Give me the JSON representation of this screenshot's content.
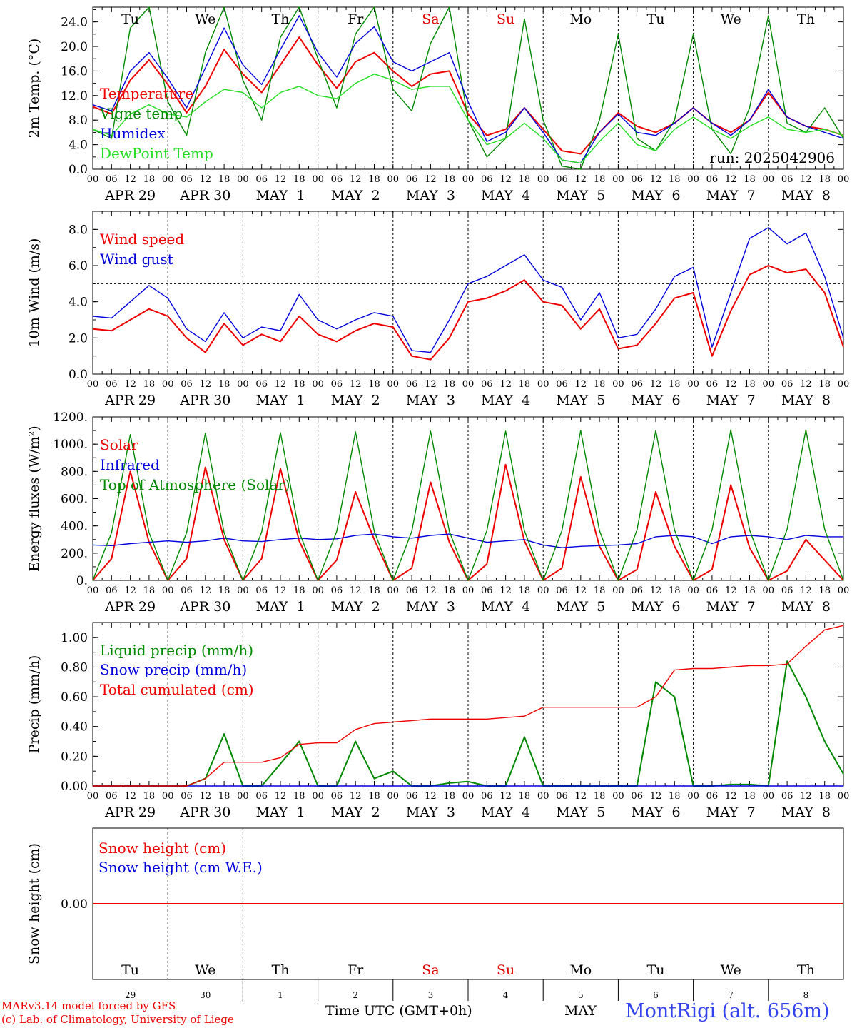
{
  "days": [
    "Tu",
    "We",
    "Th",
    "Fr",
    "Sa",
    "Su",
    "Mo",
    "Tu",
    "We",
    "Th"
  ],
  "day_colors": [
    "#000000",
    "#000000",
    "#000000",
    "#000000",
    "#e00000",
    "#e00000",
    "#000000",
    "#000000",
    "#000000",
    "#000000"
  ],
  "dates": [
    "APR 29",
    "APR 30",
    "MAY  1",
    "MAY  2",
    "MAY  3",
    "MAY  4",
    "MAY  5",
    "MAY  6",
    "MAY  7",
    "MAY  8"
  ],
  "hour_ticks": [
    "00",
    "06",
    "12",
    "18"
  ],
  "hour_tick_end": "00",
  "day_numbers": [
    "29",
    "30",
    "1",
    "2",
    "3",
    "4",
    "5",
    "6",
    "7",
    "8"
  ],
  "footer": {
    "model": "MARv3.14 model forced by GFS",
    "lab": "(c) Lab. of Climatology, University of Liege",
    "axis_title": "Time UTC (GMT+0h)",
    "month": "MAY",
    "station": "MontRigi (alt. 656m)"
  },
  "colors": {
    "red": "#ee0000",
    "blue": "#0000dd",
    "green": "#008800",
    "lightgreen": "#22dd22"
  },
  "chart_data": [
    {
      "type": "line",
      "ylabel": "2m Temp. (°C)",
      "ylim": [
        0,
        26.4
      ],
      "yticks": [
        "0.0",
        "4.0",
        "8.0",
        "12.0",
        "16.0",
        "20.0",
        "24.0"
      ],
      "ytick_values": [
        0,
        4,
        8,
        12,
        16,
        20,
        24
      ],
      "run_label": "run: 2025042906",
      "x_hours_step": 6,
      "series": [
        {
          "name": "Temperature",
          "color": "#ee0000",
          "values": [
            10.2,
            9.0,
            14.5,
            17.8,
            13.8,
            9.2,
            13.5,
            19.5,
            15.5,
            12.5,
            17.0,
            21.5,
            17.0,
            13.2,
            17.5,
            19.0,
            16.0,
            13.5,
            15.5,
            16.0,
            9.0,
            5.5,
            6.5,
            10.0,
            6.5,
            3.0,
            2.5,
            6.0,
            9.2,
            7.0,
            6.0,
            7.5,
            10.0,
            7.5,
            6.0,
            8.0,
            12.5,
            8.5,
            7.0,
            6.5,
            5.5
          ]
        },
        {
          "name": "Vigne temp",
          "color": "#008800",
          "values": [
            6.5,
            5.0,
            23.0,
            28.0,
            11.0,
            5.5,
            19.0,
            28.0,
            14.5,
            8.0,
            21.5,
            28.0,
            18.0,
            10.0,
            22.0,
            28.0,
            13.0,
            9.5,
            20.5,
            28.0,
            8.0,
            2.0,
            5.0,
            24.5,
            8.0,
            0.5,
            0.0,
            8.0,
            22.0,
            5.0,
            3.0,
            8.0,
            22.0,
            6.5,
            2.5,
            10.0,
            25.0,
            7.5,
            6.0,
            10.0,
            5.0
          ]
        },
        {
          "name": "Humidex",
          "color": "#0000dd",
          "values": [
            10.5,
            9.5,
            16.0,
            19.0,
            14.8,
            10.0,
            16.5,
            23.0,
            17.0,
            13.8,
            19.5,
            25.0,
            19.0,
            15.0,
            20.5,
            23.2,
            17.5,
            16.0,
            17.5,
            19.0,
            11.0,
            4.5,
            6.0,
            10.0,
            6.0,
            1.5,
            1.0,
            6.0,
            9.0,
            6.0,
            5.5,
            7.5,
            10.0,
            7.5,
            5.5,
            8.0,
            13.0,
            8.5,
            7.0,
            6.0,
            5.0
          ]
        },
        {
          "name": "DewPoint Temp",
          "color": "#22dd22",
          "values": [
            6.5,
            5.5,
            9.0,
            10.5,
            9.0,
            8.5,
            11.0,
            13.0,
            12.5,
            10.0,
            12.5,
            13.5,
            12.0,
            11.5,
            14.0,
            15.5,
            14.5,
            13.0,
            13.5,
            13.5,
            8.0,
            4.0,
            5.0,
            7.5,
            5.0,
            1.5,
            1.0,
            4.5,
            7.5,
            4.0,
            3.0,
            6.5,
            8.5,
            6.5,
            5.0,
            7.0,
            8.5,
            6.5,
            6.0,
            6.5,
            5.5
          ]
        }
      ]
    },
    {
      "type": "line",
      "ylabel": "10m Wind (m/s)",
      "ylim": [
        0,
        9
      ],
      "yticks": [
        "0.0",
        "2.0",
        "4.0",
        "6.0",
        "8.0"
      ],
      "ytick_values": [
        0,
        2,
        4,
        6,
        8
      ],
      "reference_line": 5,
      "x_hours_step": 6,
      "series": [
        {
          "name": "Wind speed",
          "color": "#ee0000",
          "values": [
            2.5,
            2.4,
            3.0,
            3.6,
            3.2,
            2.0,
            1.2,
            2.8,
            1.6,
            2.2,
            1.8,
            3.2,
            2.2,
            1.8,
            2.4,
            2.8,
            2.6,
            1.0,
            0.8,
            2.0,
            4.0,
            4.2,
            4.6,
            5.2,
            4.0,
            3.8,
            2.5,
            3.6,
            1.4,
            1.6,
            2.8,
            4.2,
            4.5,
            1.0,
            3.5,
            5.5,
            6.0,
            5.6,
            5.8,
            4.5,
            1.5
          ]
        },
        {
          "name": "Wind gust",
          "color": "#0000dd",
          "values": [
            3.2,
            3.1,
            4.0,
            4.9,
            4.2,
            2.5,
            1.8,
            3.4,
            2.0,
            2.6,
            2.4,
            4.4,
            3.0,
            2.5,
            3.0,
            3.4,
            3.2,
            1.3,
            1.2,
            3.0,
            5.0,
            5.4,
            6.0,
            6.6,
            5.2,
            4.8,
            3.0,
            4.5,
            2.0,
            2.2,
            3.6,
            5.4,
            5.9,
            1.5,
            4.5,
            7.5,
            8.1,
            7.2,
            7.8,
            5.4,
            2.0
          ]
        }
      ]
    },
    {
      "type": "line",
      "ylabel": "Energy fluxes (W/m²)",
      "ylim": [
        0,
        1200
      ],
      "yticks": [
        "0.",
        "200.",
        "400.",
        "600.",
        "800.",
        "1000.",
        "1200."
      ],
      "ytick_values": [
        0,
        200,
        400,
        600,
        800,
        1000,
        1200
      ],
      "x_hours_step": 6,
      "series": [
        {
          "name": "Solar",
          "color": "#ee0000",
          "values": [
            0,
            160,
            800,
            280,
            0,
            160,
            830,
            300,
            0,
            160,
            820,
            290,
            0,
            150,
            650,
            300,
            0,
            90,
            720,
            280,
            0,
            120,
            850,
            290,
            0,
            90,
            760,
            250,
            0,
            80,
            650,
            250,
            0,
            80,
            700,
            240,
            0,
            70,
            300,
            150,
            0
          ]
        },
        {
          "name": "Infrared",
          "color": "#0000dd",
          "values": [
            260,
            255,
            270,
            280,
            290,
            280,
            290,
            310,
            290,
            285,
            300,
            310,
            300,
            305,
            330,
            340,
            320,
            310,
            330,
            340,
            310,
            280,
            290,
            300,
            260,
            240,
            250,
            255,
            260,
            270,
            320,
            330,
            320,
            270,
            320,
            330,
            320,
            300,
            330,
            320,
            320
          ]
        },
        {
          "name": "Top of Atmosphere (Solar)",
          "color": "#008800",
          "values": [
            0,
            350,
            1070,
            350,
            0,
            350,
            1080,
            350,
            0,
            355,
            1085,
            355,
            0,
            360,
            1090,
            360,
            0,
            360,
            1095,
            360,
            0,
            365,
            1095,
            365,
            0,
            365,
            1100,
            365,
            0,
            370,
            1100,
            370,
            0,
            370,
            1105,
            370,
            0,
            375,
            1105,
            375,
            0
          ]
        }
      ]
    },
    {
      "type": "line",
      "ylabel": "Precip (mm/h)",
      "ylim": [
        0,
        1.1
      ],
      "yticks": [
        "0.00",
        "0.20",
        "0.40",
        "0.60",
        "0.80",
        "1.00"
      ],
      "ytick_values": [
        0,
        0.2,
        0.4,
        0.6,
        0.8,
        1.0
      ],
      "x_hours_step": 6,
      "series": [
        {
          "name": "Liquid precip (mm/h)",
          "color": "#008800",
          "values": [
            0,
            0,
            0,
            0,
            0,
            0,
            0.05,
            0.35,
            0,
            0,
            0.15,
            0.3,
            0,
            0,
            0.3,
            0.05,
            0.1,
            0,
            0,
            0.02,
            0.03,
            0,
            0,
            0.33,
            0,
            0,
            0,
            0,
            0,
            0,
            0.7,
            0.6,
            0,
            0,
            0.01,
            0.01,
            0,
            0.84,
            0.6,
            0.3,
            0.08
          ]
        },
        {
          "name": "Snow precip (mm/h)",
          "color": "#0000dd",
          "values": [
            0,
            0,
            0,
            0,
            0,
            0,
            0,
            0,
            0,
            0,
            0,
            0,
            0,
            0,
            0,
            0,
            0,
            0,
            0,
            0,
            0,
            0,
            0,
            0,
            0,
            0,
            0,
            0,
            0,
            0,
            0,
            0,
            0,
            0,
            0,
            0,
            0,
            0,
            0,
            0,
            0
          ]
        },
        {
          "name": "Total cumulated (cm)",
          "color": "#ee0000",
          "values": [
            0,
            0,
            0,
            0,
            0,
            0,
            0.05,
            0.16,
            0.16,
            0.16,
            0.19,
            0.28,
            0.29,
            0.29,
            0.38,
            0.42,
            0.43,
            0.44,
            0.45,
            0.45,
            0.45,
            0.45,
            0.46,
            0.47,
            0.53,
            0.53,
            0.53,
            0.53,
            0.53,
            0.53,
            0.6,
            0.78,
            0.79,
            0.79,
            0.8,
            0.81,
            0.81,
            0.82,
            0.94,
            1.05,
            1.08
          ]
        }
      ]
    },
    {
      "type": "line",
      "ylabel": "Snow height (cm)",
      "ylim": [
        -1,
        1
      ],
      "yticks": [
        "0.00"
      ],
      "ytick_values": [
        0
      ],
      "x_hours_step": 6,
      "series": [
        {
          "name": "Snow height (cm)",
          "color": "#ee0000",
          "values": [
            0,
            0
          ]
        },
        {
          "name": "Snow height (cm W.E.)",
          "color": "#0000dd",
          "values": []
        }
      ]
    }
  ]
}
